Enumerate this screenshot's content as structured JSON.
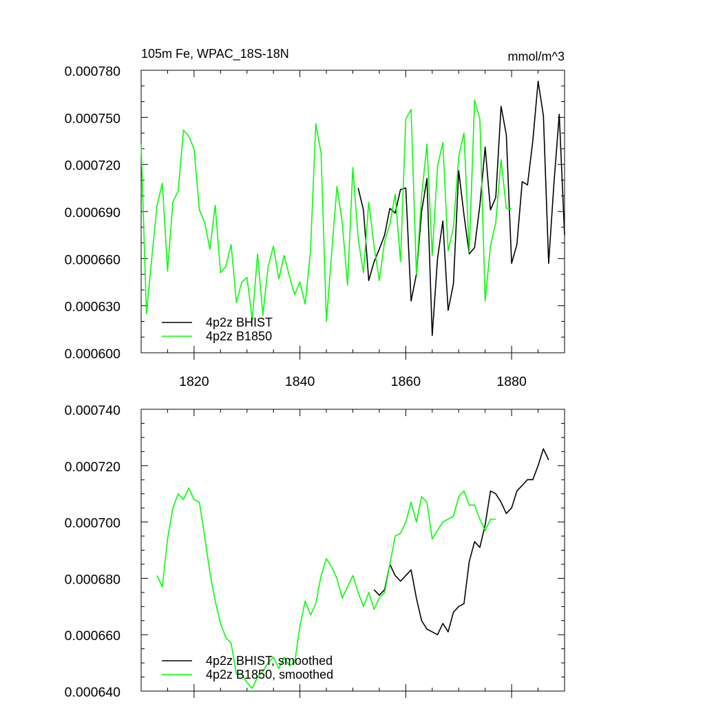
{
  "chart_data": [
    {
      "type": "line",
      "title_left": "105m Fe, WPAC_18S-18N",
      "title_right": "mmol/m^3",
      "ylim": [
        0.0006,
        0.00078
      ],
      "yticks": [
        "0.000600",
        "0.000630",
        "0.000660",
        "0.000690",
        "0.000720",
        "0.000750",
        "0.000780"
      ],
      "xlim": [
        1810,
        1890
      ],
      "xticks": [
        "1820",
        "1840",
        "1860",
        "1880"
      ],
      "legend_position": "lower-left",
      "series": [
        {
          "name": "4p2z BHIST",
          "color": "#000000",
          "x": [
            1851,
            1852,
            1853,
            1854,
            1855,
            1856,
            1857,
            1858,
            1859,
            1860,
            1861,
            1862,
            1863,
            1864,
            1865,
            1866,
            1867,
            1868,
            1869,
            1870,
            1871,
            1872,
            1873,
            1874,
            1875,
            1876,
            1877,
            1878,
            1879,
            1880,
            1881,
            1882,
            1883,
            1884,
            1885,
            1886,
            1887,
            1888,
            1889,
            1890
          ],
          "values": [
            0.000705,
            0.000691,
            0.000646,
            0.000658,
            0.000666,
            0.000675,
            0.000692,
            0.000689,
            0.000704,
            0.000705,
            0.000633,
            0.00065,
            0.00069,
            0.000711,
            0.000611,
            0.00066,
            0.000684,
            0.000627,
            0.000644,
            0.000716,
            0.000688,
            0.000663,
            0.000667,
            0.000694,
            0.000731,
            0.000691,
            0.000699,
            0.000757,
            0.000739,
            0.000657,
            0.000669,
            0.000709,
            0.000707,
            0.000735,
            0.000773,
            0.000751,
            0.000657,
            0.000708,
            0.000752,
            0.000675
          ]
        },
        {
          "name": "4p2z B1850",
          "color": "#00ff00",
          "x": [
            1810,
            1811,
            1812,
            1813,
            1814,
            1815,
            1816,
            1817,
            1818,
            1819,
            1820,
            1821,
            1822,
            1823,
            1824,
            1825,
            1826,
            1827,
            1828,
            1829,
            1830,
            1831,
            1832,
            1833,
            1834,
            1835,
            1836,
            1837,
            1838,
            1839,
            1840,
            1841,
            1842,
            1843,
            1844,
            1845,
            1846,
            1847,
            1848,
            1849,
            1850,
            1851,
            1852,
            1853,
            1854,
            1855,
            1856,
            1857,
            1858,
            1859,
            1860,
            1861,
            1862,
            1863,
            1864,
            1865,
            1866,
            1867,
            1868,
            1869,
            1870,
            1871,
            1872,
            1873,
            1874,
            1875,
            1876,
            1877,
            1878,
            1879,
            1880
          ],
          "values": [
            0.000733,
            0.000625,
            0.00066,
            0.000694,
            0.000708,
            0.000652,
            0.000696,
            0.000703,
            0.000742,
            0.000738,
            0.00073,
            0.000691,
            0.000683,
            0.000666,
            0.000694,
            0.000651,
            0.000655,
            0.000669,
            0.000632,
            0.000645,
            0.000648,
            0.000621,
            0.000663,
            0.000624,
            0.000655,
            0.000668,
            0.000647,
            0.000662,
            0.000649,
            0.000637,
            0.000645,
            0.000631,
            0.000665,
            0.000746,
            0.000727,
            0.00062,
            0.000664,
            0.000706,
            0.000683,
            0.000643,
            0.000718,
            0.000673,
            0.000651,
            0.000696,
            0.000668,
            0.000646,
            0.000671,
            0.000682,
            0.000701,
            0.000658,
            0.000749,
            0.000755,
            0.00065,
            0.0007,
            0.000733,
            0.000662,
            0.000719,
            0.000734,
            0.000665,
            0.00068,
            0.000725,
            0.00074,
            0.000664,
            0.000761,
            0.000749,
            0.000633,
            0.000668,
            0.000683,
            0.000723,
            0.000692,
            0.000692
          ]
        }
      ]
    },
    {
      "type": "line",
      "ylim": [
        0.00064,
        0.00074
      ],
      "yticks": [
        "0.000640",
        "0.000660",
        "0.000680",
        "0.000700",
        "0.000720",
        "0.000740"
      ],
      "xlim": [
        1810,
        1890
      ],
      "legend_position": "lower-left",
      "series": [
        {
          "name": "4p2z BHIST, smoothed",
          "color": "#000000",
          "x": [
            1854,
            1855,
            1856,
            1857,
            1858,
            1859,
            1860,
            1861,
            1862,
            1863,
            1864,
            1865,
            1866,
            1867,
            1868,
            1869,
            1870,
            1871,
            1872,
            1873,
            1874,
            1875,
            1876,
            1877,
            1878,
            1879,
            1880,
            1881,
            1882,
            1883,
            1884,
            1885,
            1886,
            1887
          ],
          "values": [
            0.000676,
            0.000674,
            0.000676,
            0.000685,
            0.000681,
            0.000679,
            0.000681,
            0.000683,
            0.000673,
            0.000665,
            0.000662,
            0.000661,
            0.00066,
            0.000664,
            0.000661,
            0.000668,
            0.00067,
            0.000671,
            0.000686,
            0.000693,
            0.000691,
            0.000699,
            0.000711,
            0.00071,
            0.000707,
            0.000703,
            0.000705,
            0.000711,
            0.000713,
            0.000715,
            0.000715,
            0.00072,
            0.000726,
            0.000722
          ]
        },
        {
          "name": "4p2z B1850, smoothed",
          "color": "#00ff00",
          "x": [
            1813,
            1814,
            1815,
            1816,
            1817,
            1818,
            1819,
            1820,
            1821,
            1822,
            1823,
            1824,
            1825,
            1826,
            1827,
            1828,
            1829,
            1830,
            1831,
            1832,
            1833,
            1834,
            1835,
            1836,
            1837,
            1838,
            1839,
            1840,
            1841,
            1842,
            1843,
            1844,
            1845,
            1846,
            1847,
            1848,
            1849,
            1850,
            1851,
            1852,
            1853,
            1854,
            1855,
            1856,
            1857,
            1858,
            1859,
            1860,
            1861,
            1862,
            1863,
            1864,
            1865,
            1866,
            1867,
            1868,
            1869,
            1870,
            1871,
            1872,
            1873,
            1874,
            1875,
            1876,
            1877
          ],
          "values": [
            0.000681,
            0.000677,
            0.000694,
            0.000705,
            0.00071,
            0.000708,
            0.000712,
            0.000708,
            0.000707,
            0.000695,
            0.000682,
            0.000672,
            0.000664,
            0.000659,
            0.000657,
            0.000646,
            0.000646,
            0.000643,
            0.000641,
            0.000645,
            0.000647,
            0.00065,
            0.000652,
            0.000648,
            0.000652,
            0.000649,
            0.00065,
            0.000663,
            0.000672,
            0.000667,
            0.000671,
            0.000681,
            0.000687,
            0.000684,
            0.00068,
            0.000673,
            0.000677,
            0.000681,
            0.000675,
            0.00067,
            0.000675,
            0.000669,
            0.000673,
            0.000675,
            0.000685,
            0.000695,
            0.000696,
            0.0007,
            0.000707,
            0.0007,
            0.000709,
            0.000707,
            0.000694,
            0.000697,
            0.0007,
            0.000701,
            0.000702,
            0.000709,
            0.000711,
            0.000706,
            0.000706,
            0.000701,
            0.000697,
            0.000701,
            0.000701
          ]
        }
      ]
    }
  ]
}
